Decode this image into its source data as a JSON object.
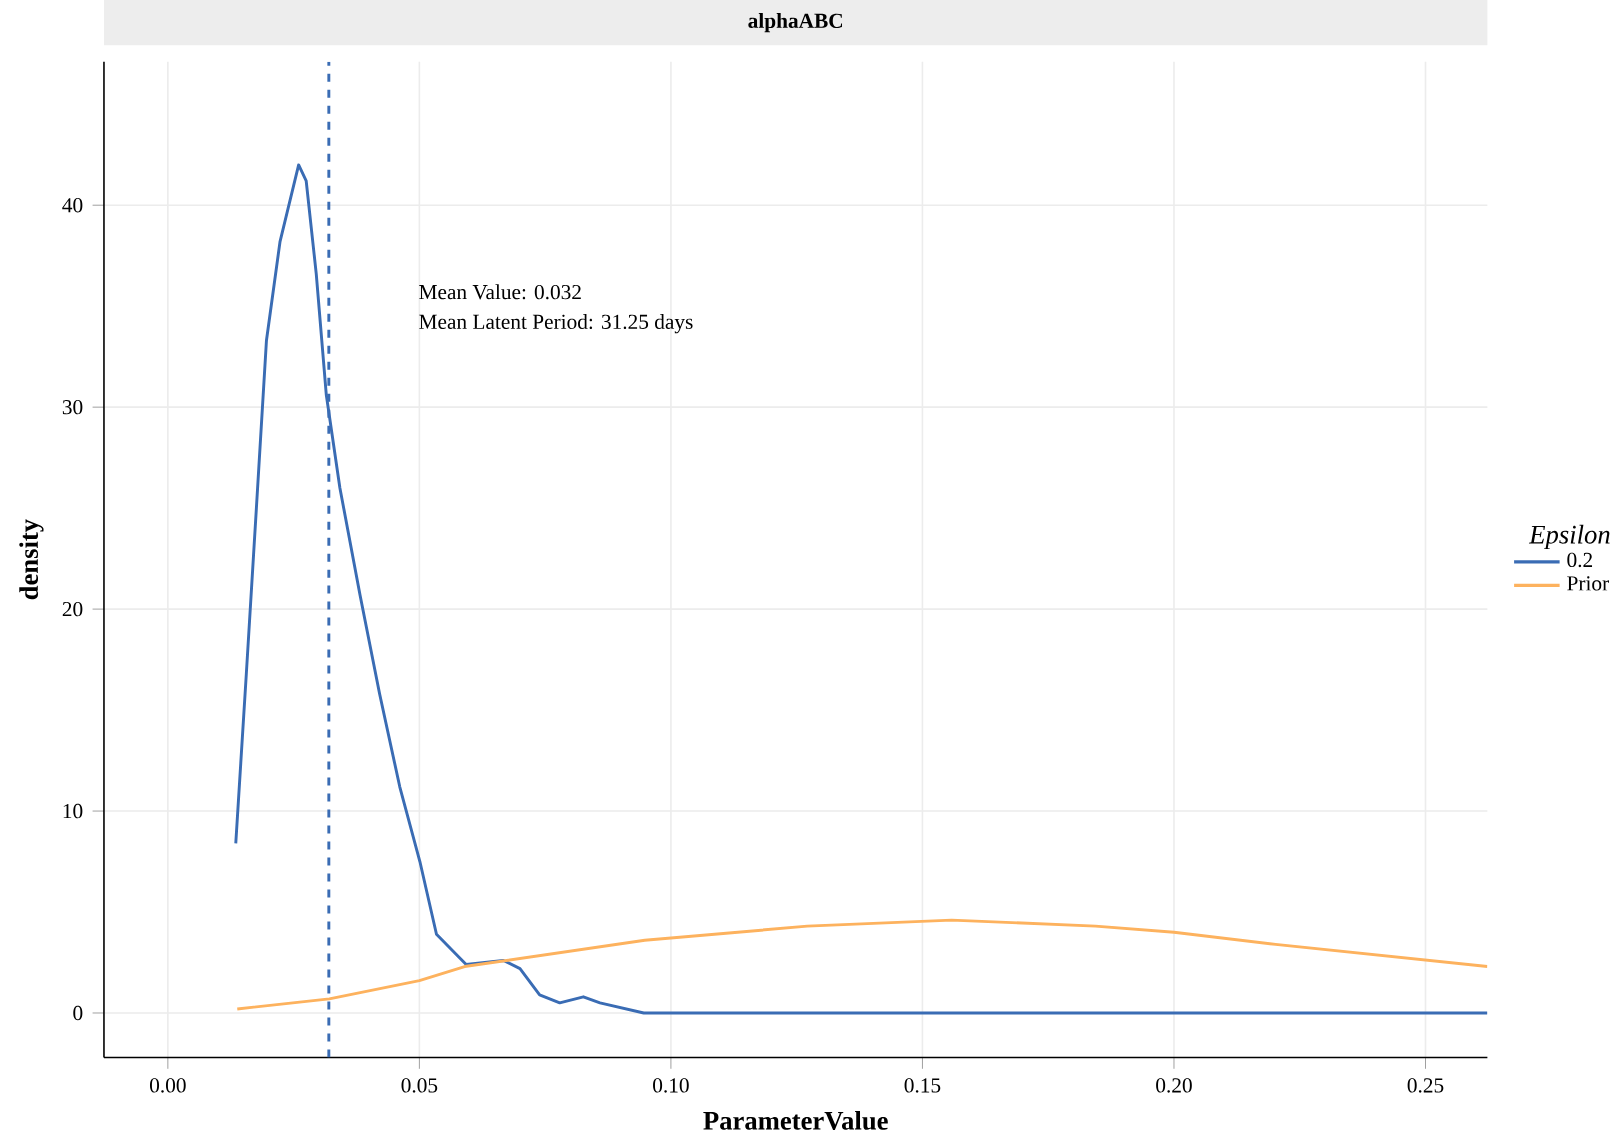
{
  "chart_data": {
    "type": "line",
    "title": "alphaABC",
    "xlabel": "ParameterValue",
    "ylabel": "density",
    "legend_title": "Epsilon",
    "series": [
      {
        "name": "0.2",
        "color": "#3a6cb4",
        "x": [
          0.0135,
          0.0156,
          0.0176,
          0.0196,
          0.0223,
          0.026,
          0.0275,
          0.0295,
          0.0315,
          0.0342,
          0.0382,
          0.0421,
          0.0461,
          0.0501,
          0.0534,
          0.0593,
          0.0667,
          0.07,
          0.0739,
          0.0779,
          0.0826,
          0.0859,
          0.0946,
          0.2623
        ],
        "values": [
          8.4,
          16.8,
          25.0,
          33.3,
          38.2,
          42.0,
          41.2,
          36.6,
          30.6,
          26.0,
          20.7,
          15.8,
          11.2,
          7.5,
          3.9,
          2.4,
          2.6,
          2.2,
          0.9,
          0.5,
          0.8,
          0.5,
          0,
          0
        ]
      },
      {
        "name": "Prior",
        "color": "#fdb25e",
        "x": [
          0.0138,
          0.0321,
          0.05,
          0.059,
          0.0948,
          0.1271,
          0.1558,
          0.1844,
          0.2,
          0.2202,
          0.2623
        ],
        "values": [
          0.2,
          0.7,
          1.6,
          2.3,
          3.6,
          4.3,
          4.6,
          4.3,
          4.0,
          3.4,
          2.3
        ]
      }
    ],
    "xlim": [
      -0.0127,
      0.2623
    ],
    "ylim": [
      -2.2,
      47.1
    ],
    "xticks": [
      {
        "value": 0,
        "label": "0.00"
      },
      {
        "value": 0.05,
        "label": "0.05"
      },
      {
        "value": 0.1,
        "label": "0.10"
      },
      {
        "value": 0.15,
        "label": "0.15"
      },
      {
        "value": 0.2,
        "label": "0.20"
      },
      {
        "value": 0.25,
        "label": "0.25"
      }
    ],
    "yticks": [
      0,
      10,
      20,
      30,
      40
    ],
    "ref_lines": [
      {
        "axis": "x",
        "value": 0.032,
        "color": "#3a6cb4",
        "line_style": "dashed"
      }
    ],
    "annotations": [
      "Mean Value: 0.032",
      "Mean Latent Period: 31.25 days"
    ],
    "grid": true,
    "legend": "right",
    "marker": "none",
    "line_style": "solid"
  }
}
